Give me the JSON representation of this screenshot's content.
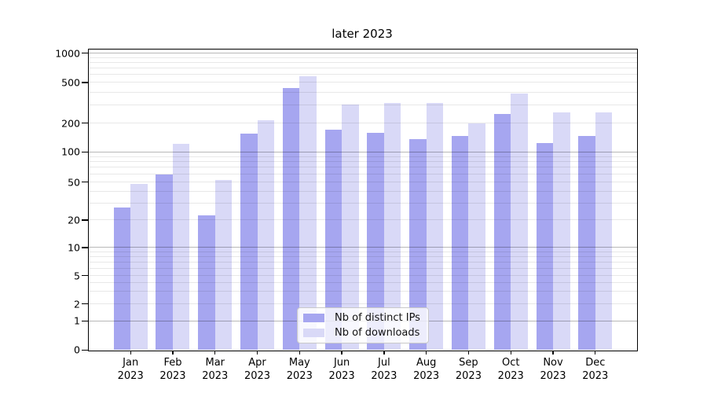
{
  "title": "later 2023",
  "colors": {
    "ips_bar": "#a6a6f0",
    "downloads_bar": "#d9d9f7",
    "grid_major": "#b4b4b4",
    "grid_minor": "#e6e6e6",
    "axis": "#000000"
  },
  "legend": {
    "items": [
      {
        "label": "Nb of distinct IPs",
        "color": "#a6a6f0"
      },
      {
        "label": "Nb of downloads",
        "color": "#d9d9f7"
      }
    ]
  },
  "x_axis": {
    "year_line": "2023",
    "months": [
      "Jan",
      "Feb",
      "Mar",
      "Apr",
      "May",
      "Jun",
      "Jul",
      "Aug",
      "Sep",
      "Oct",
      "Nov",
      "Dec"
    ]
  },
  "y_axis": {
    "tick_values": [
      0,
      1,
      2,
      5,
      10,
      20,
      50,
      100,
      200,
      500,
      1000
    ],
    "tick_labels": [
      "0",
      "1",
      "2",
      "5",
      "10",
      "20",
      "50",
      "100",
      "200",
      "500",
      "1000"
    ],
    "minor_grid_values": [
      2,
      3,
      4,
      5,
      6,
      7,
      8,
      9,
      20,
      30,
      40,
      50,
      60,
      70,
      80,
      90,
      200,
      300,
      400,
      500,
      600,
      700,
      800,
      900
    ],
    "major_grid_values": [
      1,
      10,
      100,
      1000
    ]
  },
  "chart_data": {
    "type": "bar",
    "title": "later 2023",
    "categories": [
      "Jan 2023",
      "Feb 2023",
      "Mar 2023",
      "Apr 2023",
      "May 2023",
      "Jun 2023",
      "Jul 2023",
      "Aug 2023",
      "Sep 2023",
      "Oct 2023",
      "Nov 2023",
      "Dec 2023"
    ],
    "series": [
      {
        "name": "Nb of distinct IPs",
        "color": "#a6a6f0",
        "values": [
          27,
          59,
          22,
          155,
          440,
          170,
          157,
          135,
          146,
          245,
          122,
          146
        ]
      },
      {
        "name": "Nb of downloads",
        "color": "#d9d9f7",
        "values": [
          47,
          120,
          52,
          212,
          575,
          300,
          312,
          310,
          198,
          385,
          250,
          250
        ]
      }
    ],
    "xlabel": "",
    "ylabel": "",
    "yscale": "symlog-style (log ticks 1-1000 with 0 baseline)",
    "y_ticks": [
      0,
      1,
      2,
      5,
      10,
      20,
      50,
      100,
      200,
      500,
      1000
    ],
    "ylim": [
      0,
      1000
    ],
    "grid": true,
    "legend_position": "lower center (inside plot)"
  }
}
